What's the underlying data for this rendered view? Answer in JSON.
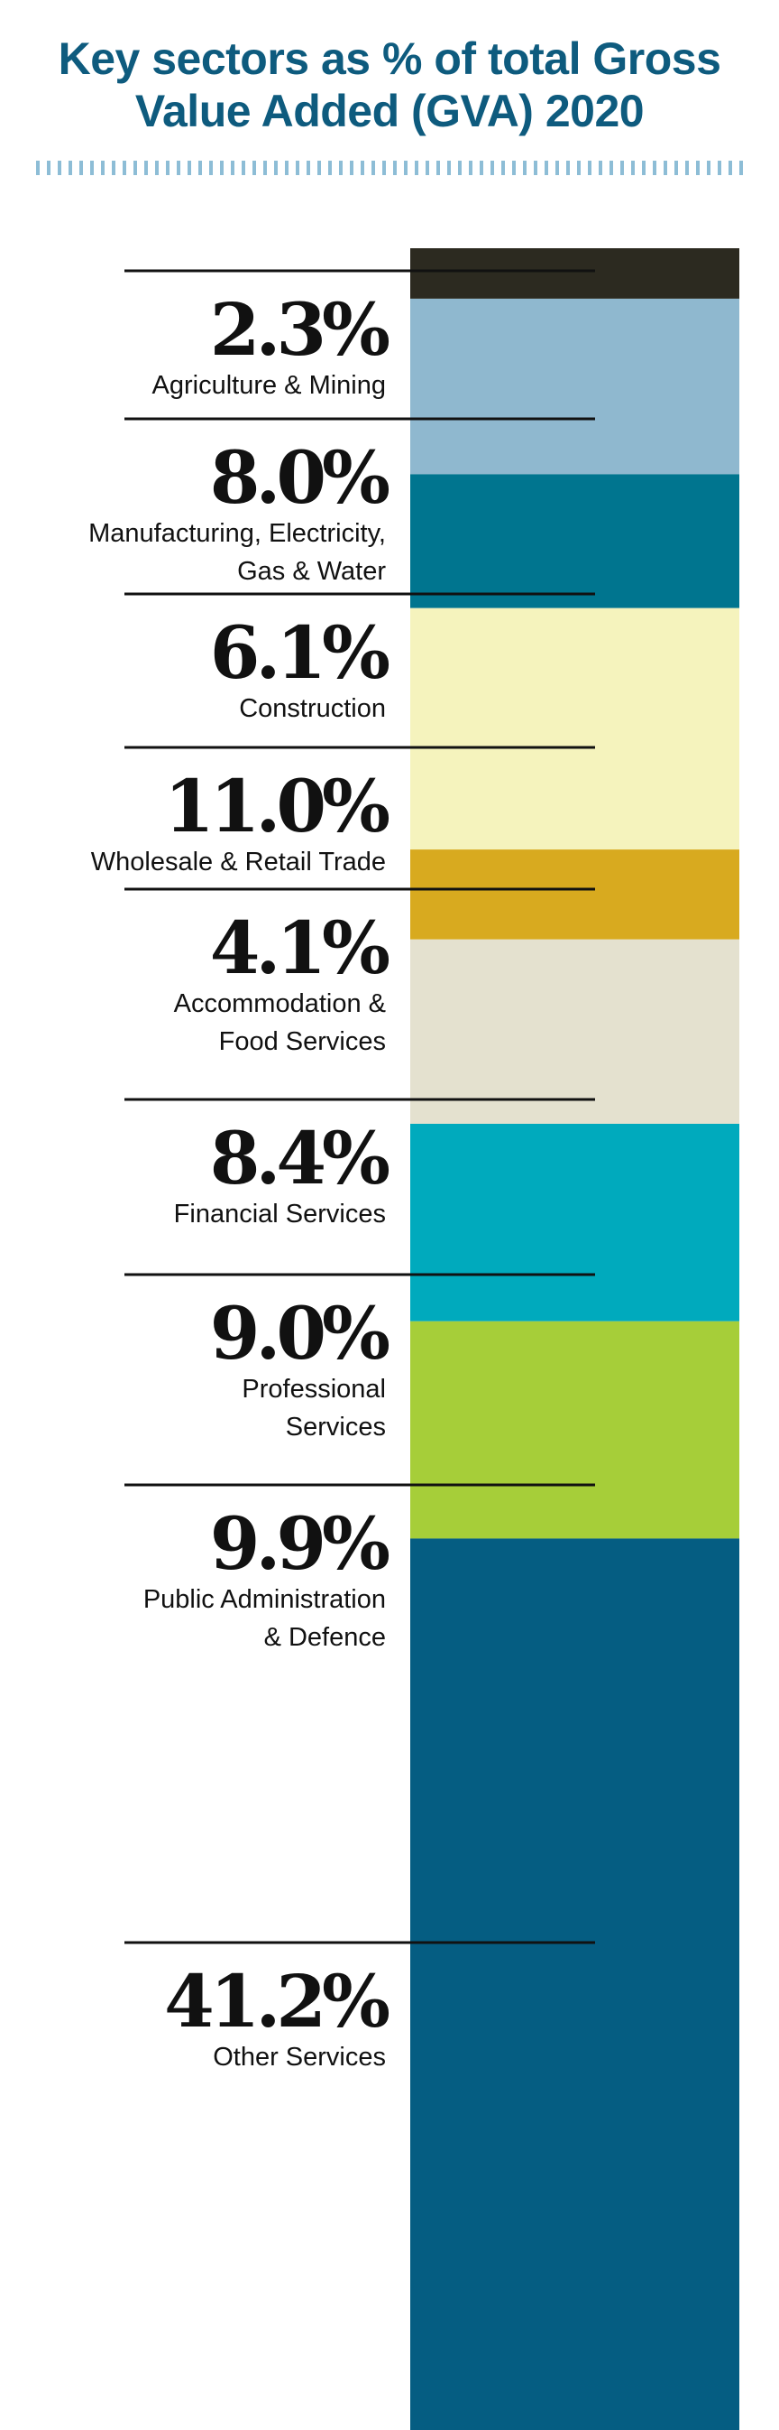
{
  "chart_data": {
    "type": "bar",
    "stacked": true,
    "title_lines": [
      "Key sectors as % of total Gross",
      "Value Added (GVA) 2020"
    ],
    "segments": [
      {
        "value": 2.3,
        "value_label": "2.3%",
        "label_lines": [
          "Agriculture & Mining"
        ],
        "color": "#2c2a20"
      },
      {
        "value": 8.0,
        "value_label": "8.0%",
        "label_lines": [
          "Manufacturing, Electricity,",
          "Gas & Water"
        ],
        "color": "#8fb8cf"
      },
      {
        "value": 6.1,
        "value_label": "6.1%",
        "label_lines": [
          "Construction"
        ],
        "color": "#00758f"
      },
      {
        "value": 11.0,
        "value_label": "11.0%",
        "label_lines": [
          "Wholesale & Retail Trade"
        ],
        "color": "#f5f3bd"
      },
      {
        "value": 4.1,
        "value_label": "4.1%",
        "label_lines": [
          "Accommodation &",
          "Food Services"
        ],
        "color": "#d8aa1f"
      },
      {
        "value": 8.4,
        "value_label": "8.4%",
        "label_lines": [
          "Financial Services"
        ],
        "color": "#e4e1cf"
      },
      {
        "value": 9.0,
        "value_label": "9.0%",
        "label_lines": [
          "Professional",
          "Services"
        ],
        "color": "#00aabd"
      },
      {
        "value": 9.9,
        "value_label": "9.9%",
        "label_lines": [
          "Public Administration",
          "& Defence"
        ],
        "color": "#a6ce39"
      },
      {
        "value": 41.2,
        "value_label": "41.2%",
        "label_lines": [
          "Other Services"
        ],
        "color": "#055d82"
      }
    ]
  }
}
